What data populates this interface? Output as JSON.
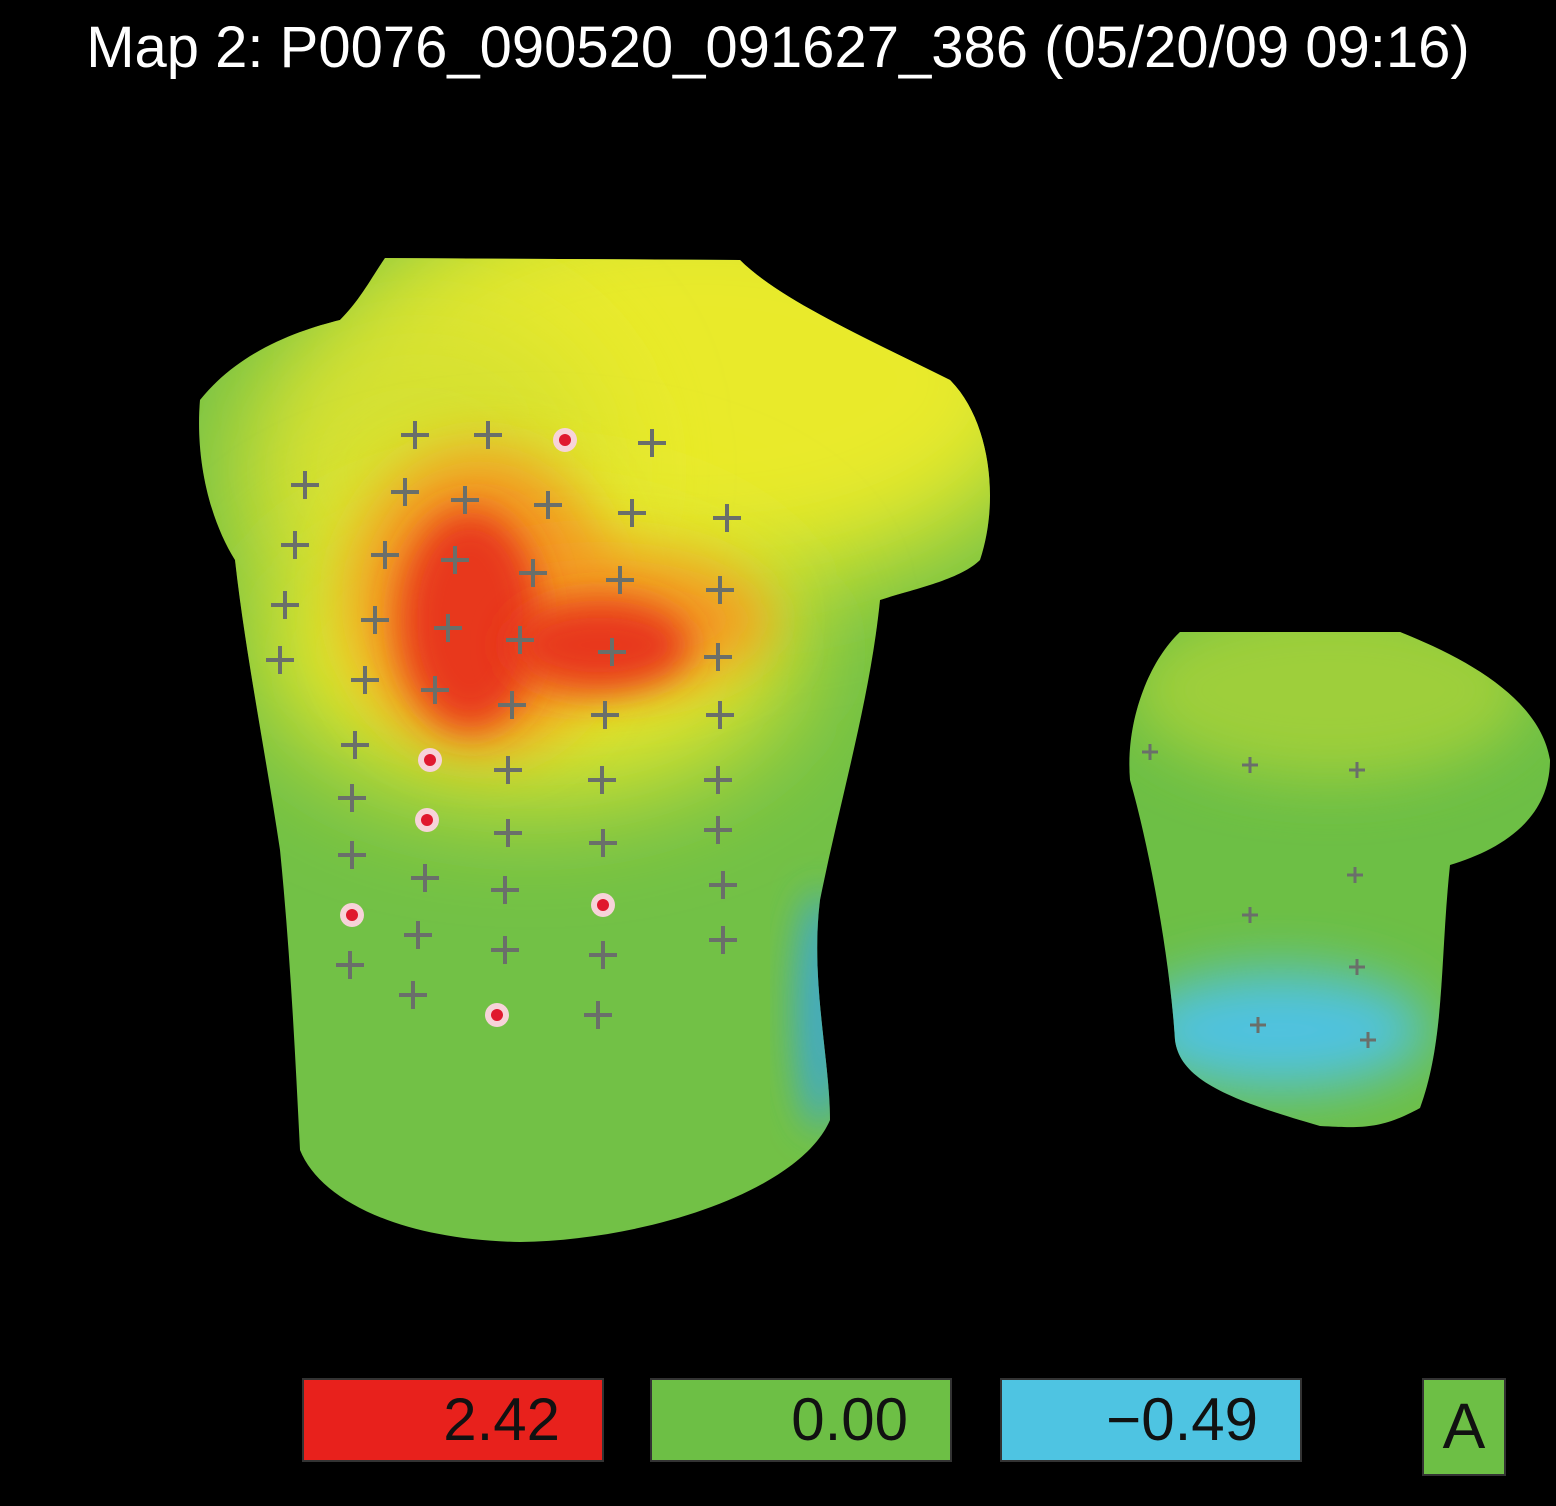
{
  "header": {
    "title": "Map 2: P0076_090520_091627_386 (05/20/09 09:16)"
  },
  "colors": {
    "max": "#e8211c",
    "zero": "#6dbf45",
    "min": "#4ec4e2",
    "background": "#000000"
  },
  "scale": {
    "max_label": "2.42",
    "zero_label": "0.00",
    "min_label": "−0.49"
  },
  "view_button": {
    "label": "A"
  }
}
